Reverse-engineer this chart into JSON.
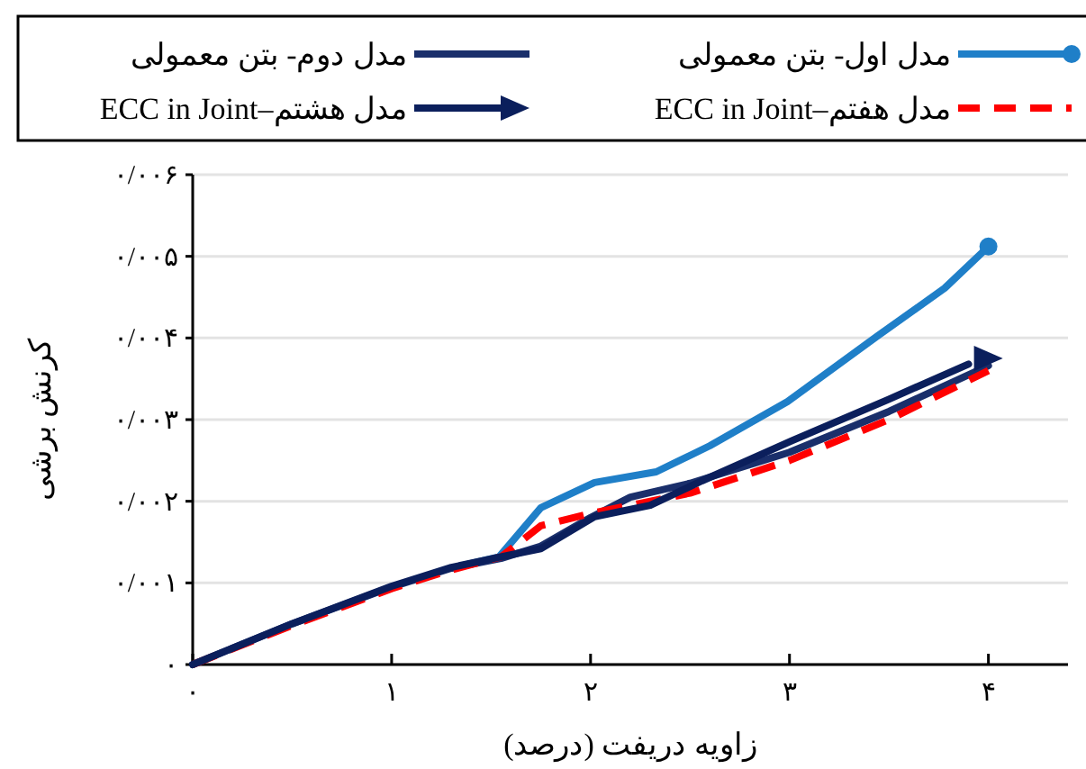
{
  "chart_data": {
    "type": "line",
    "xlabel": "زاویه دریفت (درصد)",
    "ylabel": "کرنش برشی",
    "xlim": [
      0,
      4.4
    ],
    "xticks": [
      {
        "value": 0,
        "label": "۰"
      },
      {
        "value": 1,
        "label": "۱"
      },
      {
        "value": 2,
        "label": "۲"
      },
      {
        "value": 3,
        "label": "۳"
      },
      {
        "value": 4,
        "label": "۴"
      }
    ],
    "ylim": [
      0,
      0.006
    ],
    "yticks": [
      {
        "value": 0,
        "label": "۰"
      },
      {
        "value": 0.001,
        "label": "۰/۰۰۱"
      },
      {
        "value": 0.002,
        "label": "۰/۰۰۲"
      },
      {
        "value": 0.003,
        "label": "۰/۰۰۳"
      },
      {
        "value": 0.004,
        "label": "۰/۰۰۴"
      },
      {
        "value": 0.005,
        "label": "۰/۰۰۵"
      },
      {
        "value": 0.006,
        "label": "۰/۰۰۶"
      }
    ],
    "grid": "y",
    "legend": "top",
    "series": [
      {
        "name": "مدل اول- بتن معمولی",
        "color": "#1f7fc8",
        "line_style": "solid",
        "x": [
          1.3,
          1.54,
          1.75,
          2.02,
          2.33,
          2.6,
          2.99,
          3.44,
          3.78,
          4
        ],
        "values": [
          0.00118,
          0.00132,
          0.00192,
          0.00223,
          0.00236,
          0.00268,
          0.00322,
          0.00402,
          0.00461,
          0.00512
        ]
      },
      {
        "type": "scatter",
        "color": "#1f7fc8",
        "marker": "circle",
        "x": [
          4
        ],
        "values": [
          0.00512
        ]
      },
      {
        "name": "مدل دوم- بتن معمولی",
        "color": "#1a2f6b",
        "line_style": "solid",
        "x": [
          0,
          0.5,
          1,
          1.3,
          1.55,
          1.75,
          2.0,
          2.2,
          2.5,
          3,
          3.5,
          4
        ],
        "values": [
          0,
          0.0005,
          0.00095,
          0.00118,
          0.0013,
          0.00145,
          0.0018,
          0.00205,
          0.00222,
          0.0026,
          0.0031,
          0.00366
        ]
      },
      {
        "name": "مدل هفتم–ECC in Joint",
        "color": "#ff0000",
        "line_style": "dashed",
        "x": [
          0,
          0.5,
          1,
          1.3,
          1.55,
          1.75,
          2.0,
          2.5,
          3,
          3.5,
          4
        ],
        "values": [
          0,
          0.00048,
          0.00093,
          0.00116,
          0.00132,
          0.0017,
          0.00185,
          0.0021,
          0.0025,
          0.003,
          0.0036
        ]
      },
      {
        "name": "مدل هشتم–ECC in Joint",
        "color": "#0b1f5c",
        "line_style": "solid",
        "x": [
          0,
          0.5,
          1,
          1.3,
          1.55,
          1.75,
          2.02,
          2.3,
          2.56,
          3.01,
          3.5,
          3.9
        ],
        "values": [
          0,
          0.0005,
          0.00096,
          0.00119,
          0.00132,
          0.00142,
          0.00181,
          0.00195,
          0.00225,
          0.00274,
          0.00325,
          0.00368
        ]
      },
      {
        "type": "scatter",
        "color": "#0b1f5c",
        "marker": "triangle",
        "x": [
          4
        ],
        "values": [
          0.00375
        ]
      }
    ]
  }
}
